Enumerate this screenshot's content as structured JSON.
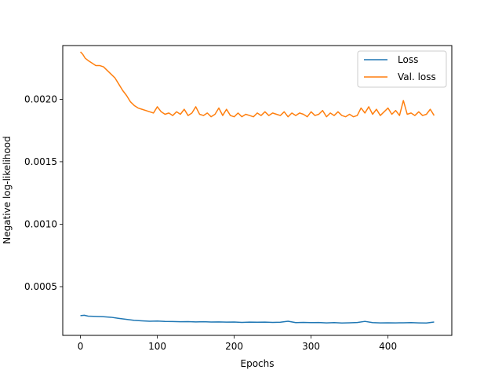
{
  "chart_data": {
    "type": "line",
    "title": "",
    "xlabel": "Epochs",
    "ylabel": "Negative log-likelihood",
    "xlim": [
      -23,
      483
    ],
    "ylim": [
      0.00011,
      0.00243
    ],
    "xticks": [
      0,
      100,
      200,
      300,
      400
    ],
    "yticks": [
      0.0005,
      0.001,
      0.0015,
      0.002
    ],
    "ytick_labels": [
      "0.0005",
      "0.0010",
      "0.0015",
      "0.0020"
    ],
    "grid": false,
    "legend_position": "top-right",
    "series": [
      {
        "name": "Loss",
        "color": "#1f77b4",
        "x": [
          0,
          5,
          10,
          20,
          30,
          40,
          50,
          60,
          70,
          80,
          90,
          100,
          110,
          120,
          130,
          140,
          150,
          160,
          170,
          180,
          190,
          200,
          210,
          220,
          230,
          240,
          250,
          260,
          270,
          280,
          290,
          300,
          310,
          320,
          330,
          340,
          350,
          360,
          370,
          380,
          390,
          400,
          410,
          420,
          430,
          440,
          450,
          460
        ],
        "y": [
          0.000268,
          0.000271,
          0.000264,
          0.000262,
          0.000259,
          0.000255,
          0.000246,
          0.000238,
          0.00023,
          0.000226,
          0.000223,
          0.000225,
          0.000222,
          0.000221,
          0.000219,
          0.00022,
          0.000218,
          0.000219,
          0.000217,
          0.000218,
          0.000216,
          0.000217,
          0.000214,
          0.000216,
          0.000215,
          0.000216,
          0.000214,
          0.000215,
          0.000223,
          0.000212,
          0.000214,
          0.000212,
          0.000213,
          0.00021,
          0.000212,
          0.000209,
          0.000211,
          0.000213,
          0.000222,
          0.000212,
          0.00021,
          0.000211,
          0.00021,
          0.000211,
          0.000212,
          0.00021,
          0.000209,
          0.000217
        ]
      },
      {
        "name": "Val. loss",
        "color": "#ff7f0e",
        "x": [
          0,
          3,
          6,
          10,
          15,
          20,
          25,
          30,
          35,
          40,
          45,
          50,
          55,
          60,
          65,
          70,
          75,
          80,
          85,
          90,
          95,
          100,
          105,
          110,
          115,
          120,
          125,
          130,
          135,
          140,
          145,
          150,
          155,
          160,
          165,
          170,
          175,
          180,
          185,
          190,
          195,
          200,
          205,
          210,
          215,
          220,
          225,
          230,
          235,
          240,
          245,
          250,
          255,
          260,
          265,
          270,
          275,
          280,
          285,
          290,
          295,
          300,
          305,
          310,
          315,
          320,
          325,
          330,
          335,
          340,
          345,
          350,
          355,
          360,
          365,
          370,
          375,
          380,
          385,
          390,
          395,
          400,
          405,
          410,
          415,
          420,
          425,
          430,
          435,
          440,
          445,
          450,
          455,
          460
        ],
        "y": [
          0.00238,
          0.00236,
          0.00233,
          0.00231,
          0.00229,
          0.00227,
          0.00227,
          0.00226,
          0.00223,
          0.0022,
          0.00217,
          0.00212,
          0.00207,
          0.00203,
          0.00198,
          0.00195,
          0.00193,
          0.00192,
          0.00191,
          0.0019,
          0.00189,
          0.00194,
          0.0019,
          0.00188,
          0.00189,
          0.00187,
          0.0019,
          0.00188,
          0.00192,
          0.00187,
          0.00189,
          0.00194,
          0.00188,
          0.00187,
          0.00189,
          0.00186,
          0.00188,
          0.00193,
          0.00187,
          0.00192,
          0.00187,
          0.00186,
          0.00189,
          0.00186,
          0.00188,
          0.00187,
          0.00186,
          0.00189,
          0.00187,
          0.0019,
          0.00187,
          0.00189,
          0.00188,
          0.00187,
          0.0019,
          0.00186,
          0.00189,
          0.00187,
          0.00189,
          0.00188,
          0.00186,
          0.0019,
          0.00187,
          0.00188,
          0.00191,
          0.00186,
          0.00189,
          0.00187,
          0.0019,
          0.00187,
          0.00186,
          0.00188,
          0.00186,
          0.00187,
          0.00193,
          0.00189,
          0.00194,
          0.00188,
          0.00192,
          0.00187,
          0.0019,
          0.00193,
          0.00188,
          0.00191,
          0.00187,
          0.00199,
          0.00188,
          0.00189,
          0.00187,
          0.0019,
          0.00187,
          0.00188,
          0.00192,
          0.00187
        ]
      }
    ]
  }
}
